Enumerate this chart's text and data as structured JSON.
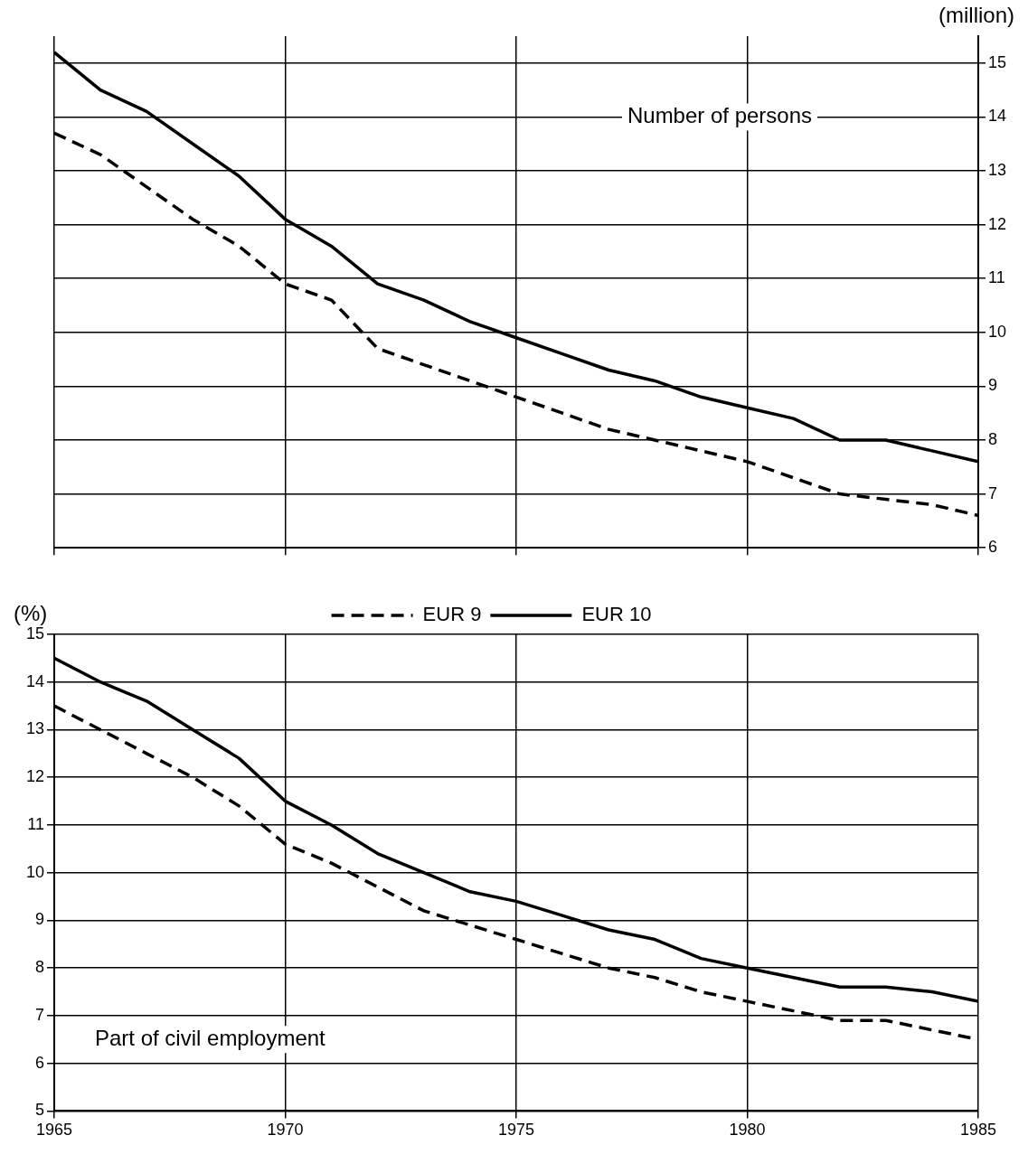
{
  "chart_data": [
    {
      "type": "line",
      "title": "Number of persons",
      "ylabel": "(million)",
      "x": [
        1965,
        1966,
        1967,
        1968,
        1969,
        1970,
        1971,
        1972,
        1973,
        1974,
        1975,
        1976,
        1977,
        1978,
        1979,
        1980,
        1981,
        1982,
        1983,
        1984,
        1985
      ],
      "series": [
        {
          "color": "#000000",
          "line_style": "dashed",
          "values": [
            13.7,
            13.3,
            12.7,
            12.1,
            11.6,
            10.9,
            10.6,
            9.7,
            9.4,
            9.1,
            8.8,
            8.5,
            8.2,
            8.0,
            7.8,
            7.6,
            7.3,
            7.0,
            6.9,
            6.8,
            6.6
          ]
        },
        {
          "color": "#000000",
          "line_style": "solid",
          "values": [
            15.2,
            14.5,
            14.1,
            13.5,
            12.9,
            12.1,
            11.6,
            10.9,
            10.6,
            10.2,
            9.9,
            9.6,
            9.3,
            9.1,
            8.8,
            8.6,
            8.4,
            8.0,
            8.0,
            7.8,
            7.6
          ]
        }
      ],
      "xlim": [
        1965,
        1985
      ],
      "xticks": [
        1965,
        1970,
        1975,
        1980,
        1985
      ],
      "ylim": [
        6,
        15.5
      ],
      "yticks": [
        6,
        7,
        8,
        9,
        10,
        11,
        12,
        13,
        14,
        15
      ],
      "grid": true,
      "tick_labels": "y",
      "marker": "none"
    },
    {
      "type": "line",
      "title": "Part of civil employment",
      "ylabel": "(%)",
      "x": [
        1965,
        1966,
        1967,
        1968,
        1969,
        1970,
        1971,
        1972,
        1973,
        1974,
        1975,
        1976,
        1977,
        1978,
        1979,
        1980,
        1981,
        1982,
        1983,
        1984,
        1985
      ],
      "series": [
        {
          "name": "EUR 9",
          "color": "#000000",
          "line_style": "dashed",
          "values": [
            13.5,
            13.0,
            12.5,
            12.0,
            11.4,
            10.6,
            10.2,
            9.7,
            9.2,
            8.9,
            8.6,
            8.3,
            8.0,
            7.8,
            7.5,
            7.3,
            7.1,
            6.9,
            6.9,
            6.7,
            6.5
          ]
        },
        {
          "name": "EUR 10",
          "color": "#000000",
          "line_style": "solid",
          "values": [
            14.5,
            14.0,
            13.6,
            13.0,
            12.4,
            11.5,
            11.0,
            10.4,
            10.0,
            9.6,
            9.4,
            9.1,
            8.8,
            8.6,
            8.2,
            8.0,
            7.8,
            7.6,
            7.6,
            7.5,
            7.3
          ]
        }
      ],
      "xlim": [
        1965,
        1985
      ],
      "xticks": [
        1965,
        1970,
        1975,
        1980,
        1985
      ],
      "ylim": [
        5,
        15
      ],
      "yticks": [
        5,
        6,
        7,
        8,
        9,
        10,
        11,
        12,
        13,
        14,
        15
      ],
      "grid": true,
      "legend": "top",
      "marker": "none"
    }
  ]
}
